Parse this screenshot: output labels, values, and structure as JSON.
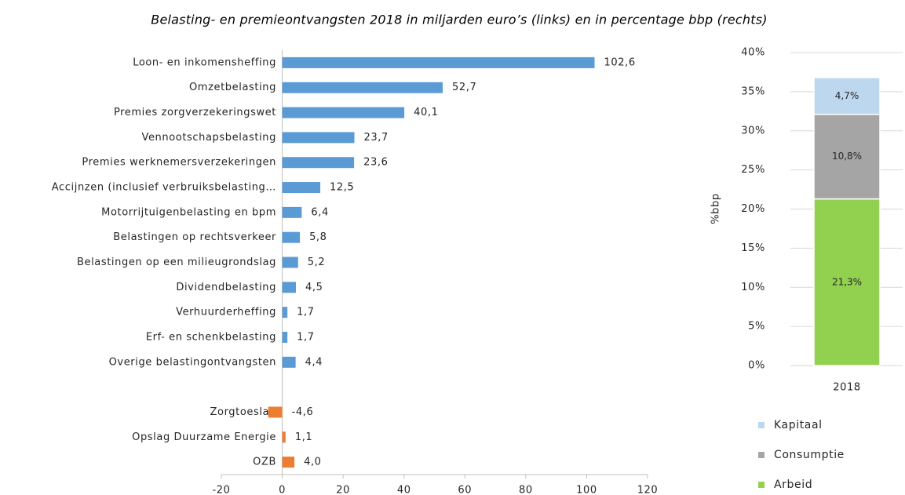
{
  "chart_data": [
    {
      "type": "hbar",
      "title": "Belasting- en premieontvangsten 2018 in miljarden euro’s (links) en in percentage bbp (rechts)",
      "categories": [
        "Loon- en inkomensheffing",
        "Omzetbelasting",
        "Premies zorgverzekeringswet",
        "Vennootschapsbelasting",
        "Premies werknemersverzekeringen",
        "Accijnzen (inclusief verbruiksbelasting…",
        "Motorrijtuigenbelasting en bpm",
        "Belastingen op rechtsverkeer",
        "Belastingen op een milieugrondslag",
        "Dividendbelasting",
        "Verhuurderheffing",
        "Erf- en schenkbelasting",
        "Overige belastingontvangsten",
        null,
        "Zorgtoeslag",
        "Opslag Duurzame Energie",
        "OZB"
      ],
      "values": [
        102.6,
        52.7,
        40.1,
        23.7,
        23.6,
        12.5,
        6.4,
        5.8,
        5.2,
        4.5,
        1.7,
        1.7,
        4.4,
        null,
        -4.6,
        1.1,
        4.0
      ],
      "value_labels": [
        "102,6",
        "52,7",
        "40,1",
        "23,7",
        "23,6",
        "12,5",
        "6,4",
        "5,8",
        "5,2",
        "4,5",
        "1,7",
        "1,7",
        "4,4",
        null,
        "-4,6",
        "1,1",
        "4,0"
      ],
      "bar_colors": [
        "#5b9bd5",
        "#5b9bd5",
        "#5b9bd5",
        "#5b9bd5",
        "#5b9bd5",
        "#5b9bd5",
        "#5b9bd5",
        "#5b9bd5",
        "#5b9bd5",
        "#5b9bd5",
        "#5b9bd5",
        "#5b9bd5",
        "#5b9bd5",
        null,
        "#ed7d31",
        "#ed7d31",
        "#ed7d31"
      ],
      "xlim": [
        -20,
        120
      ],
      "xticks": [
        -20,
        0,
        20,
        40,
        60,
        80,
        100,
        120
      ]
    },
    {
      "type": "stacked_bar",
      "categories": [
        "2018"
      ],
      "y_label": "%bbp",
      "series": [
        {
          "name": "Arbeid",
          "color": "#92d050",
          "values": [
            21.3
          ],
          "value_labels": [
            "21,3%"
          ]
        },
        {
          "name": "Consumptie",
          "color": "#a5a5a5",
          "values": [
            10.8
          ],
          "value_labels": [
            "10,8%"
          ]
        },
        {
          "name": "Kapitaal",
          "color": "#bdd7ee",
          "values": [
            4.7
          ],
          "value_labels": [
            "4,7%"
          ]
        }
      ],
      "ylim": [
        0,
        40
      ],
      "yticks": [
        {
          "value": 0,
          "label": "0%"
        },
        {
          "value": 5,
          "label": "5%"
        },
        {
          "value": 10,
          "label": "10%"
        },
        {
          "value": 15,
          "label": "15%"
        },
        {
          "value": 20,
          "label": "20%"
        },
        {
          "value": 25,
          "label": "25%"
        },
        {
          "value": 30,
          "label": "30%"
        },
        {
          "value": 35,
          "label": "35%"
        },
        {
          "value": 40,
          "label": "40%"
        }
      ],
      "grid": true,
      "legend": "bottom"
    }
  ]
}
